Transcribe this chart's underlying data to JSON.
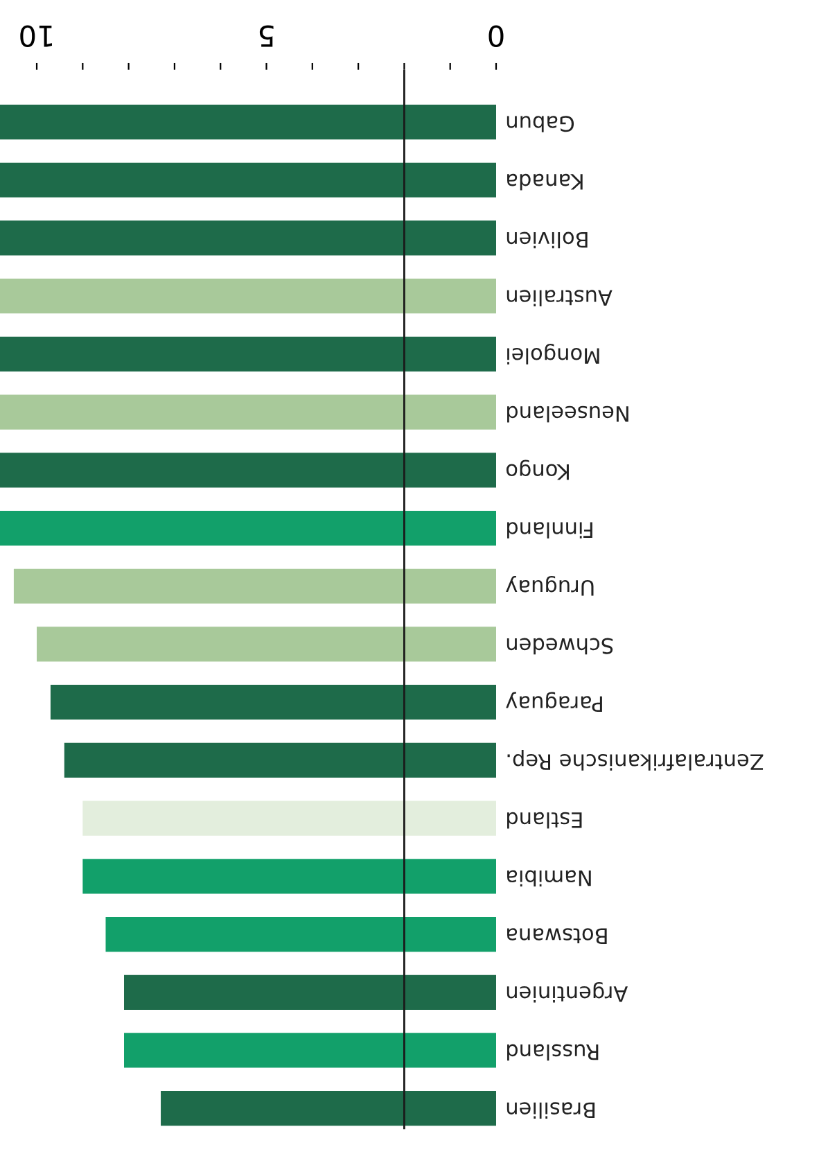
{
  "chart_data": {
    "type": "bar",
    "orientation": "horizontal",
    "categories": [
      "Gabun",
      "Kanada",
      "Bolivien",
      "Australien",
      "Mongolei",
      "Neuseeland",
      "Kongo",
      "Finnland",
      "Uruguay",
      "Schweden",
      "Paraguay",
      "Zentralafrikanische Rep.",
      "Estland",
      "Namibia",
      "Botswana",
      "Argentinien",
      "Russland",
      "Brasilien"
    ],
    "values": [
      10.8,
      10.8,
      10.8,
      10.8,
      10.8,
      10.8,
      10.8,
      10.8,
      10.5,
      10.0,
      9.7,
      9.4,
      9.0,
      9.0,
      8.5,
      8.1,
      8.1,
      7.3
    ],
    "colors": [
      "#1e6b4a",
      "#1e6b4a",
      "#1e6b4a",
      "#a8c99a",
      "#1e6b4a",
      "#a8c99a",
      "#1e6b4a",
      "#12a06a",
      "#a8c99a",
      "#a8c99a",
      "#1e6b4a",
      "#1e6b4a",
      "#e3eedd",
      "#12a06a",
      "#12a06a",
      "#1e6b4a",
      "#12a06a",
      "#1e6b4a"
    ],
    "xlim": [
      10.8,
      0
    ],
    "xticks": [
      0,
      {
        "value": 1,
        "label": null
      },
      {
        "value": 2,
        "label": null
      },
      {
        "value": 3,
        "label": null
      },
      {
        "value": 4,
        "label": null
      },
      5,
      {
        "value": 6,
        "label": null
      },
      {
        "value": 7,
        "label": null
      },
      {
        "value": 8,
        "label": null
      },
      {
        "value": 9,
        "label": null
      },
      10
    ],
    "ref_lines": [
      {
        "axis": "x",
        "value": 2,
        "color": "#1a1a1a"
      }
    ],
    "grid": false,
    "legend": false
  }
}
